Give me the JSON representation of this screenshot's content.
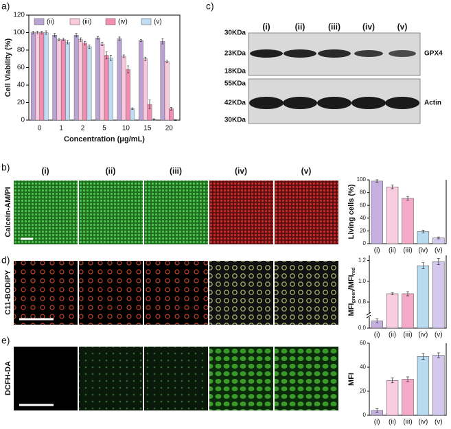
{
  "chart_data": [
    {
      "type": "grouped-bar",
      "xlabel": "Concentration (μg/mL)",
      "ylabel": "Cell Viability (%)",
      "categories": [
        "0",
        "1",
        "2",
        "5",
        "10",
        "15",
        "20"
      ],
      "series": [
        {
          "name": "(ii)",
          "color": "#b9a3d3",
          "values": [
            100,
            97,
            97,
            94,
            93,
            91,
            90
          ],
          "errors": [
            1.5,
            2,
            2,
            1.5,
            2,
            1,
            3
          ]
        },
        {
          "name": "(iii)",
          "color": "#f9c8dc",
          "values": [
            100,
            92,
            92,
            87,
            73,
            70,
            67
          ],
          "errors": [
            1.5,
            1.5,
            2,
            2,
            1.5,
            2,
            1.5
          ]
        },
        {
          "name": "(iv)",
          "color": "#f28db2",
          "values": [
            100,
            92,
            88,
            74,
            58,
            18,
            13
          ],
          "errors": [
            1.5,
            1.5,
            2,
            4,
            4,
            5,
            1.5
          ]
        },
        {
          "name": "(v)",
          "color": "#bfdcf2",
          "values": [
            100,
            89,
            84,
            71,
            13,
            1,
            0
          ],
          "errors": [
            2,
            2,
            2,
            3,
            1,
            0.5,
            0.5
          ]
        }
      ],
      "ylim": [
        0,
        120
      ],
      "yticks": [
        0,
        20,
        40,
        60,
        80,
        100,
        120
      ],
      "legend": "top"
    },
    {
      "type": "bar",
      "ylabel": "Living cells (%)",
      "categories": [
        "(i)",
        "(ii)",
        "(iii)",
        "(iv)",
        "(v)"
      ],
      "values": [
        98,
        89,
        71,
        19,
        9
      ],
      "errors": [
        2,
        3,
        3,
        2,
        1.5
      ],
      "colors": [
        "#c6b0df",
        "#f9cde0",
        "#f6a8c8",
        "#b9dbf2",
        "#d4c8ee"
      ],
      "ylim": [
        0,
        100
      ],
      "yticks": [
        0,
        20,
        40,
        60,
        80,
        100
      ]
    },
    {
      "type": "bar",
      "ylabel_parts": [
        "MFI",
        "green",
        "/MFI",
        "red"
      ],
      "categories": [
        "(i)",
        "(ii)",
        "(iii)",
        "(iv)",
        "(v)"
      ],
      "values": [
        0.07,
        0.88,
        0.88,
        1.15,
        1.19
      ],
      "errors": [
        0.02,
        0.01,
        0.02,
        0.03,
        0.03
      ],
      "colors": [
        "#c6b0df",
        "#f9cde0",
        "#f6a8c8",
        "#b9dbf2",
        "#d4c8ee"
      ],
      "ylim": [
        0,
        1.25
      ],
      "ybreak": [
        0.1,
        0.7
      ],
      "yticks": [
        {
          "value": 0,
          "label": "0.0"
        },
        {
          "value": 0.8,
          "label": "0.8"
        },
        {
          "value": 1.0,
          "label": "1.0"
        },
        {
          "value": 1.2,
          "label": "1.2"
        }
      ]
    },
    {
      "type": "bar",
      "ylabel": "MFI",
      "categories": [
        "(i)",
        "(ii)",
        "(iii)",
        "(iv)",
        "(v)"
      ],
      "values": [
        4,
        29,
        30,
        49,
        50
      ],
      "errors": [
        1.5,
        2,
        2,
        2.5,
        2
      ],
      "colors": [
        "#c6b0df",
        "#f9cde0",
        "#f6a8c8",
        "#b9dbf2",
        "#d4c8ee"
      ],
      "ylim": [
        0,
        60
      ],
      "yticks": [
        0,
        20,
        40,
        60
      ]
    }
  ],
  "panels": [
    "a)",
    "b)",
    "c)",
    "d)",
    "e)"
  ],
  "blot": {
    "lanes": [
      "(i)",
      "(ii)",
      "(iii)",
      "(iv)",
      "(v)"
    ],
    "markers_top": [
      "30KDa",
      "23KDa",
      "18KDa"
    ],
    "markers_bottom": [
      "55KDa",
      "42KDa",
      "30KDa"
    ],
    "proteins": [
      "GPX4",
      "Actin"
    ]
  },
  "images": {
    "lanes": [
      "(i)",
      "(ii)",
      "(iii)",
      "(iv)",
      "(v)"
    ],
    "rows": [
      "Calcein-AM/PI",
      "C11-BODIPY",
      "DCFH-DA"
    ]
  }
}
